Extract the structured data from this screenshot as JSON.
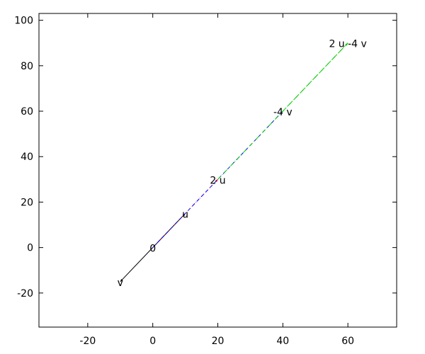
{
  "chart_data": {
    "type": "vector",
    "title": "",
    "xlabel": "",
    "ylabel": "",
    "xlim": [
      -35,
      75
    ],
    "ylim": [
      -35,
      103
    ],
    "xticks": [
      -20,
      0,
      20,
      40,
      60
    ],
    "yticks": [
      -20,
      0,
      20,
      40,
      60,
      80,
      100
    ],
    "grid": false,
    "vectors": [
      {
        "from": [
          0,
          0
        ],
        "to": [
          10,
          15
        ],
        "color": "#000000",
        "style": "solid",
        "arrow": true
      },
      {
        "from": [
          0,
          0
        ],
        "to": [
          -10,
          -15
        ],
        "color": "#000000",
        "style": "solid",
        "arrow": true
      },
      {
        "from": [
          0,
          0
        ],
        "to": [
          20,
          30
        ],
        "color": "#ff0000",
        "style": "dotted",
        "arrow": true
      },
      {
        "from": [
          0,
          0
        ],
        "to": [
          40,
          60
        ],
        "color": "#0000ff",
        "style": "dashed",
        "arrow": true
      },
      {
        "from": [
          20,
          30
        ],
        "to": [
          60,
          90
        ],
        "color": "#00cc00",
        "style": "dashdot",
        "arrow": true
      },
      {
        "from": [
          40,
          60
        ],
        "to": [
          60,
          90
        ],
        "color": "#00cc00",
        "style": "dashdot",
        "arrow": true
      }
    ],
    "labels": [
      {
        "text": "0",
        "at": [
          0,
          0
        ]
      },
      {
        "text": "u",
        "at": [
          10,
          15
        ]
      },
      {
        "text": "v",
        "at": [
          -10,
          -15
        ]
      },
      {
        "text": "2 u",
        "at": [
          20,
          30
        ]
      },
      {
        "text": "-4 v",
        "at": [
          40,
          60
        ]
      },
      {
        "text": "2 u -4 v",
        "at": [
          60,
          90
        ]
      }
    ]
  }
}
